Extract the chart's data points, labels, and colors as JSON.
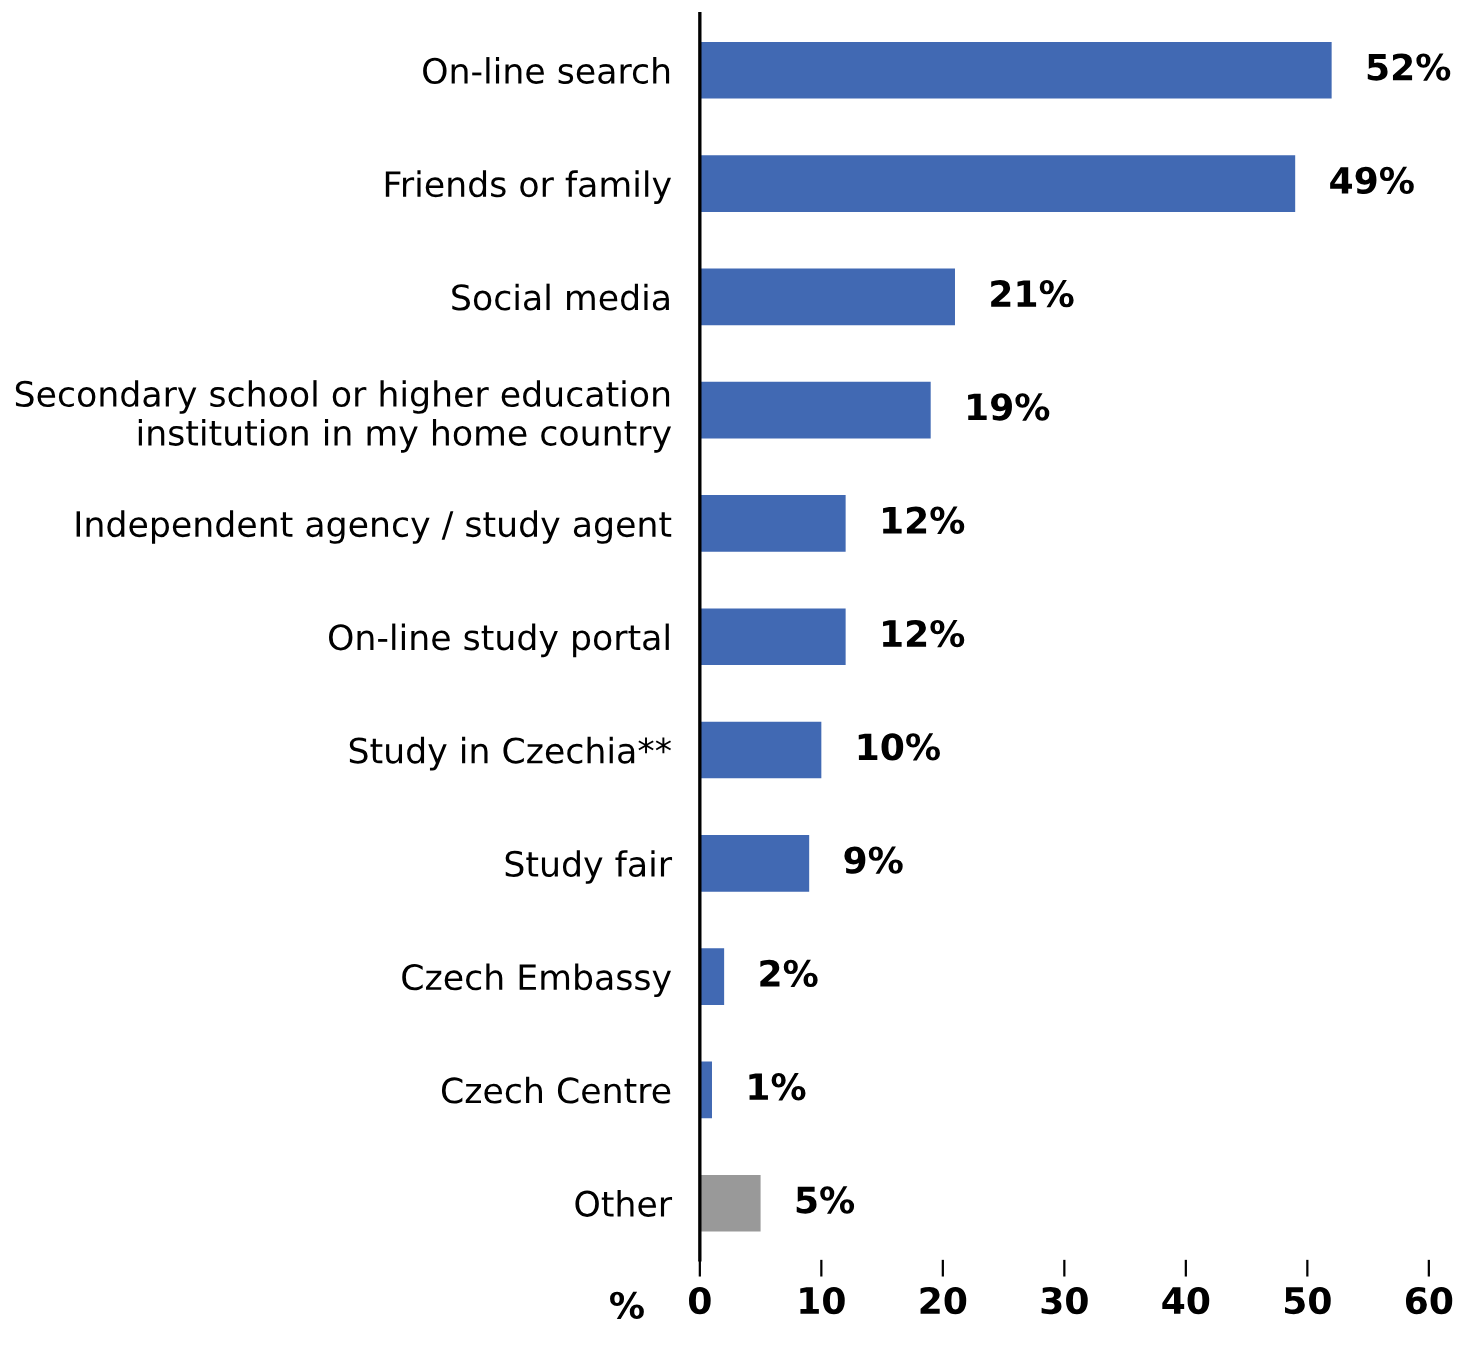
{
  "chart_data": {
    "type": "bar",
    "orientation": "horizontal",
    "categories": [
      "On-line search",
      "Friends or family",
      "Social media",
      "Secondary school or higher education\ninstitution in my home country",
      "Independent agency / study agent",
      "On-line study portal",
      "Study in Czechia**",
      "Study fair",
      "Czech Embassy",
      "Czech Centre",
      "Other"
    ],
    "values": [
      52,
      49,
      21,
      19,
      12,
      12,
      10,
      9,
      2,
      1,
      5
    ],
    "colors": [
      "#4169b3",
      "#4169b3",
      "#4169b3",
      "#4169b3",
      "#4169b3",
      "#4169b3",
      "#4169b3",
      "#4169b3",
      "#4169b3",
      "#4169b3",
      "#999999"
    ],
    "value_labels": [
      "52%",
      "49%",
      "21%",
      "19%",
      "12%",
      "12%",
      "10%",
      "9%",
      "2%",
      "1%",
      "5%"
    ],
    "xlabel": "%",
    "xlim": [
      0,
      60
    ],
    "xticks": [
      0,
      10,
      20,
      30,
      40,
      50,
      60
    ],
    "grid": false,
    "legend": false
  }
}
